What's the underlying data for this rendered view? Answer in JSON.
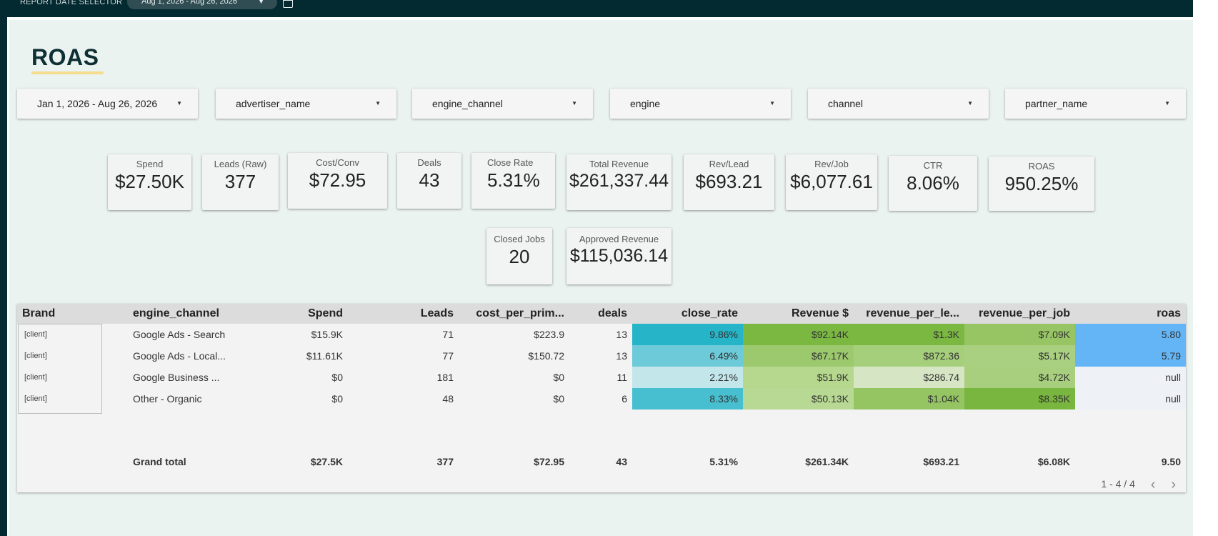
{
  "topbar": {
    "selector_label": "REPORT DATE SELECTOR",
    "date_range": "Aug 1, 2026 - Aug 26, 2026"
  },
  "page": {
    "title": "ROAS"
  },
  "filters": [
    {
      "label": "Jan 1, 2026 - Aug 26, 2026"
    },
    {
      "label": "advertiser_name"
    },
    {
      "label": "engine_channel"
    },
    {
      "label": "engine"
    },
    {
      "label": "channel"
    },
    {
      "label": "partner_name"
    }
  ],
  "scorecards": [
    {
      "label": "Spend",
      "value": "$27.50K"
    },
    {
      "label": "Leads (Raw)",
      "value": "377"
    },
    {
      "label": "Cost/Conv",
      "value": "$72.95"
    },
    {
      "label": "Deals",
      "value": "43"
    },
    {
      "label": "Close Rate",
      "value": "5.31%"
    },
    {
      "label": "Total Revenue",
      "value": "$261,337.44"
    },
    {
      "label": "Rev/Lead",
      "value": "$693.21"
    },
    {
      "label": "Rev/Job",
      "value": "$6,077.61"
    },
    {
      "label": "CTR",
      "value": "8.06%"
    },
    {
      "label": "ROAS",
      "value": "950.25%"
    },
    {
      "label": "Closed Jobs",
      "value": "20"
    },
    {
      "label": "Approved Revenue",
      "value": "$115,036.14"
    }
  ],
  "table": {
    "headers": [
      "Brand",
      "engine_channel",
      "Spend",
      "Leads",
      "cost_per_prim...",
      "deals",
      "close_rate",
      "Revenue $",
      "revenue_per_le...",
      "revenue_per_job",
      "roas"
    ],
    "rows": [
      {
        "brand": "[client]",
        "engine_channel": "Google Ads - Search",
        "spend": "$15.9K",
        "leads": "71",
        "cost": "$223.9",
        "deals": "13",
        "close_rate": "9.86%",
        "revenue": "$92.14K",
        "rev_per_lead": "$1.3K",
        "rev_per_job": "$7.09K",
        "roas": "5.80"
      },
      {
        "brand": "[client]",
        "engine_channel": "Google Ads - Local...",
        "spend": "$11.61K",
        "leads": "77",
        "cost": "$150.72",
        "deals": "13",
        "close_rate": "6.49%",
        "revenue": "$67.17K",
        "rev_per_lead": "$872.36",
        "rev_per_job": "$5.17K",
        "roas": "5.79"
      },
      {
        "brand": "[client]",
        "engine_channel": "Google Business ...",
        "spend": "$0",
        "leads": "181",
        "cost": "$0",
        "deals": "11",
        "close_rate": "2.21%",
        "revenue": "$51.9K",
        "rev_per_lead": "$286.74",
        "rev_per_job": "$4.72K",
        "roas": "null"
      },
      {
        "brand": "[client]",
        "engine_channel": "Other - Organic",
        "spend": "$0",
        "leads": "48",
        "cost": "$0",
        "deals": "6",
        "close_rate": "8.33%",
        "revenue": "$50.13K",
        "rev_per_lead": "$1.04K",
        "rev_per_job": "$8.35K",
        "roas": "null"
      }
    ],
    "total": {
      "label": "Grand total",
      "spend": "$27.5K",
      "leads": "377",
      "cost": "$72.95",
      "deals": "43",
      "close_rate": "5.31%",
      "revenue": "$261.34K",
      "rev_per_lead": "$693.21",
      "rev_per_job": "$6.08K",
      "roas": "9.50"
    },
    "pager": "1 - 4 / 4",
    "heat_colors": {
      "close_rate": [
        "#26b4c8",
        "#6dcad8",
        "#c3e6ea",
        "#48bfd0"
      ],
      "revenue": [
        "#7bb842",
        "#9dc96e",
        "#b6d78e",
        "#b8d993"
      ],
      "rev_per_lead": [
        "#7bb842",
        "#a6cf7b",
        "#d6e6c4",
        "#95c563"
      ],
      "rev_per_job": [
        "#97c563",
        "#a9d080",
        "#a8cf7e",
        "#79b63f"
      ],
      "roas": [
        "#64b5f6",
        "#64b5f6",
        "#eef1f6",
        "#eef1f6"
      ]
    }
  }
}
